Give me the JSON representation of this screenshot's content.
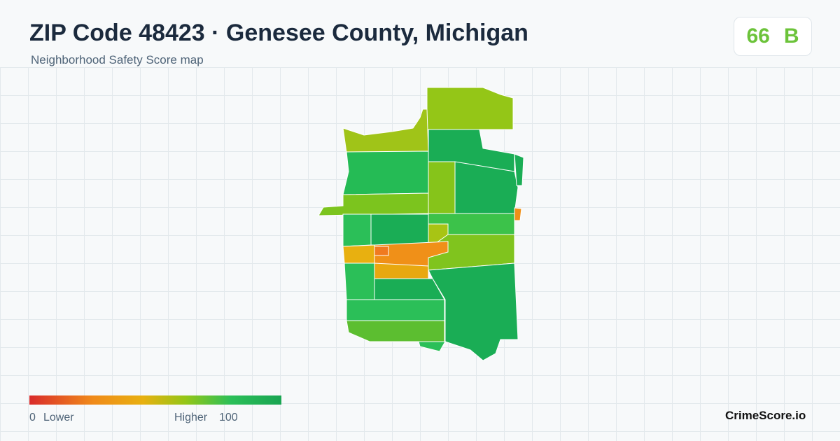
{
  "header": {
    "title": "ZIP Code 48423 · Genesee County, Michigan",
    "subtitle": "Neighborhood Safety Score map"
  },
  "score": {
    "value": 66,
    "grade": "B"
  },
  "legend": {
    "min": 0,
    "min_label": "Lower",
    "max_label": "Higher",
    "max": 100
  },
  "brand": "CrimeScore.io"
}
